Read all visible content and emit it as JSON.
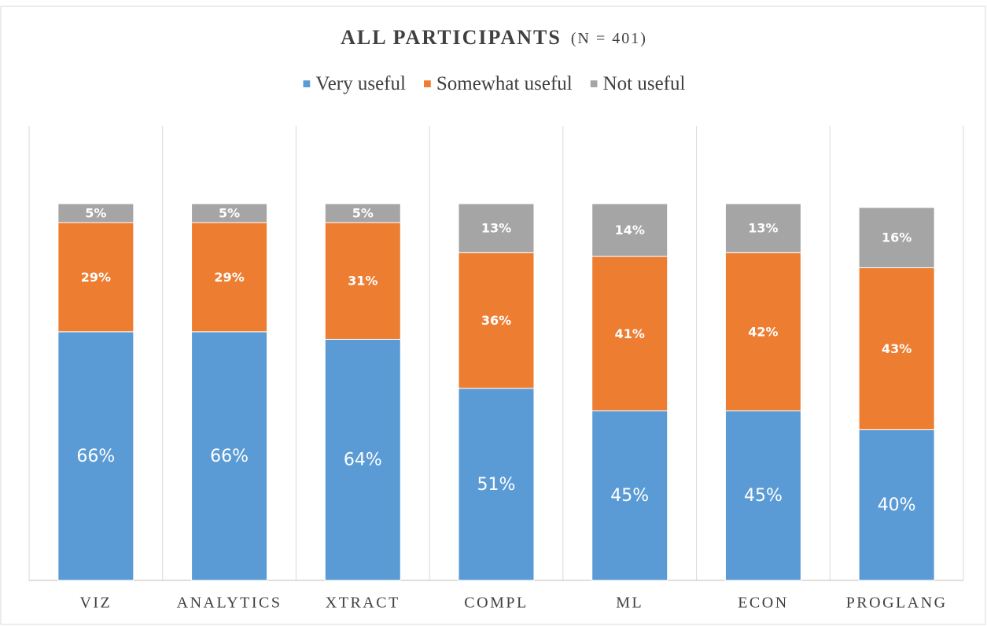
{
  "chart_data": {
    "type": "stacked_bar",
    "title": "ALL PARTICIPANTS",
    "title_note": "(N = 401)",
    "categories": [
      "VIZ",
      "ANALYTICS",
      "XTRACT",
      "COMPL",
      "ML",
      "ECON",
      "PROGLANG"
    ],
    "series": [
      {
        "name": "Very useful",
        "color": "#5b9bd5",
        "values": [
          66,
          66,
          64,
          51,
          45,
          45,
          40
        ],
        "value_labels": [
          "66%",
          "66%",
          "64%",
          "51%",
          "45%",
          "45%",
          "40%"
        ]
      },
      {
        "name": "Somewhat useful",
        "color": "#ed7d31",
        "values": [
          29,
          29,
          31,
          36,
          41,
          42,
          43
        ],
        "value_labels": [
          "29%",
          "29%",
          "31%",
          "36%",
          "41%",
          "42%",
          "43%"
        ]
      },
      {
        "name": "Not useful",
        "color": "#a5a5a5",
        "values": [
          5,
          5,
          5,
          13,
          14,
          13,
          16
        ],
        "value_labels": [
          "5%",
          "5%",
          "5%",
          "13%",
          "14%",
          "13%",
          "16%"
        ]
      }
    ],
    "ylim": [
      0,
      100
    ]
  }
}
